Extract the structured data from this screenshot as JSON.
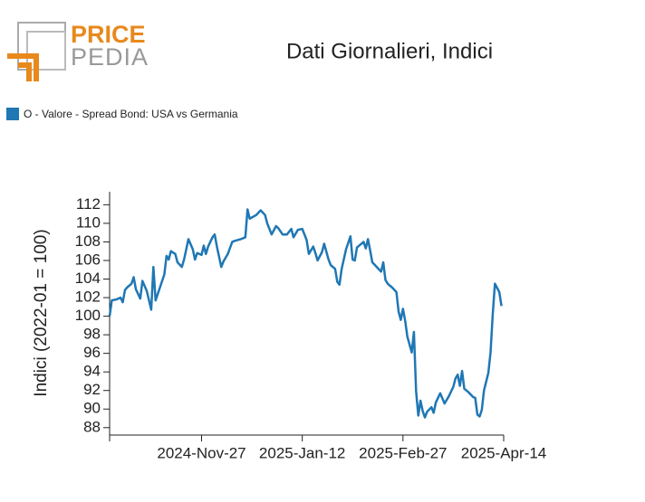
{
  "logo": {
    "top": "PRICE",
    "bottom": "PEDIA"
  },
  "chart_data": {
    "type": "line",
    "title": "Dati Giornalieri, Indici",
    "y_label": "Indici (2022-01 = 100)",
    "x": [
      "2024-10-16",
      "2024-10-17",
      "2024-10-19",
      "2024-10-21",
      "2024-10-22",
      "2024-10-23",
      "2024-10-24",
      "2024-10-26",
      "2024-10-27",
      "2024-10-28",
      "2024-10-30",
      "2024-10-31",
      "2024-11-02",
      "2024-11-04",
      "2024-11-05",
      "2024-11-06",
      "2024-11-08",
      "2024-11-10",
      "2024-11-11",
      "2024-11-12",
      "2024-11-13",
      "2024-11-15",
      "2024-11-16",
      "2024-11-18",
      "2024-11-19",
      "2024-11-21",
      "2024-11-23",
      "2024-11-24",
      "2024-11-25",
      "2024-11-27",
      "2024-11-28",
      "2024-11-29",
      "2024-11-30",
      "2024-12-02",
      "2024-12-03",
      "2024-12-04",
      "2024-12-06",
      "2024-12-07",
      "2024-12-09",
      "2024-12-11",
      "2024-12-12",
      "2024-12-15",
      "2024-12-17",
      "2024-12-18",
      "2024-12-19",
      "2024-12-22",
      "2024-12-24",
      "2024-12-26",
      "2024-12-27",
      "2024-12-29",
      "2024-12-31",
      "2025-01-01",
      "2025-01-03",
      "2025-01-05",
      "2025-01-07",
      "2025-01-08",
      "2025-01-10",
      "2025-01-12",
      "2025-01-14",
      "2025-01-15",
      "2025-01-17",
      "2025-01-18",
      "2025-01-19",
      "2025-01-21",
      "2025-01-22",
      "2025-01-24",
      "2025-01-25",
      "2025-01-27",
      "2025-01-28",
      "2025-01-29",
      "2025-01-30",
      "2025-02-01",
      "2025-02-03",
      "2025-02-04",
      "2025-02-05",
      "2025-02-06",
      "2025-02-09",
      "2025-02-10",
      "2025-02-11",
      "2025-02-12",
      "2025-02-13",
      "2025-02-15",
      "2025-02-17",
      "2025-02-18",
      "2025-02-19",
      "2025-02-20",
      "2025-02-22",
      "2025-02-24",
      "2025-02-25",
      "2025-02-26",
      "2025-02-27",
      "2025-02-28",
      "2025-03-01",
      "2025-03-03",
      "2025-03-04",
      "2025-03-05",
      "2025-03-06",
      "2025-03-07",
      "2025-03-08",
      "2025-03-09",
      "2025-03-10",
      "2025-03-12",
      "2025-03-13",
      "2025-03-14",
      "2025-03-16",
      "2025-03-18",
      "2025-03-20",
      "2025-03-22",
      "2025-03-23",
      "2025-03-24",
      "2025-03-25",
      "2025-03-26",
      "2025-03-27",
      "2025-03-29",
      "2025-03-31",
      "2025-04-01",
      "2025-04-02",
      "2025-04-03",
      "2025-04-04",
      "2025-04-05",
      "2025-04-07",
      "2025-04-08",
      "2025-04-09",
      "2025-04-10",
      "2025-04-12",
      "2025-04-13"
    ],
    "series": [
      {
        "name": "O - Valore - Spread Bond: USA vs Germania",
        "color": "#1f77b4",
        "values": [
          100.0,
          101.7,
          101.8,
          102.0,
          101.5,
          102.8,
          103.1,
          103.5,
          104.2,
          102.9,
          101.9,
          103.8,
          102.7,
          100.7,
          105.3,
          101.7,
          103.1,
          104.5,
          106.5,
          106.1,
          107.0,
          106.7,
          105.8,
          105.3,
          106.1,
          108.3,
          107.2,
          106.1,
          106.8,
          106.6,
          107.6,
          106.7,
          107.5,
          108.5,
          108.8,
          107.5,
          105.3,
          105.9,
          106.7,
          108.0,
          108.1,
          108.3,
          108.5,
          111.5,
          110.5,
          110.9,
          111.4,
          110.9,
          110.0,
          108.8,
          109.7,
          109.5,
          108.8,
          108.8,
          109.4,
          108.5,
          109.3,
          109.4,
          108.2,
          106.7,
          107.5,
          106.8,
          106.0,
          106.9,
          107.8,
          106.1,
          105.5,
          105.1,
          103.7,
          103.4,
          105.1,
          107.2,
          108.6,
          106.1,
          106.0,
          107.4,
          108.0,
          107.3,
          108.3,
          107.1,
          105.8,
          105.3,
          104.8,
          105.8,
          103.9,
          103.5,
          103.1,
          102.6,
          100.5,
          99.6,
          100.8,
          99.5,
          97.8,
          96.1,
          98.3,
          91.9,
          89.3,
          90.9,
          89.8,
          89.1,
          89.7,
          90.2,
          89.6,
          90.7,
          91.7,
          90.6,
          91.4,
          92.4,
          93.3,
          93.7,
          92.5,
          94.1,
          92.2,
          91.8,
          91.3,
          91.2,
          89.4,
          89.2,
          89.9,
          92.0,
          93.9,
          96.1,
          100.2,
          103.5,
          102.6,
          101.1
        ]
      }
    ],
    "xlim": [
      "2024-10-16",
      "2025-04-14"
    ],
    "xticks": [
      {
        "value": "2024-11-27",
        "label": "2024-Nov-27"
      },
      {
        "value": "2025-01-12",
        "label": "2025-Jan-12"
      },
      {
        "value": "2025-02-27",
        "label": "2025-Feb-27"
      },
      {
        "value": "2025-04-14",
        "label": "2025-Apr-14"
      }
    ],
    "ylim": [
      87.2,
      113.4
    ],
    "yticks": [
      88,
      90,
      92,
      94,
      96,
      98,
      100,
      102,
      104,
      106,
      108,
      110,
      112
    ],
    "legend": "top-left",
    "grid": false
  }
}
